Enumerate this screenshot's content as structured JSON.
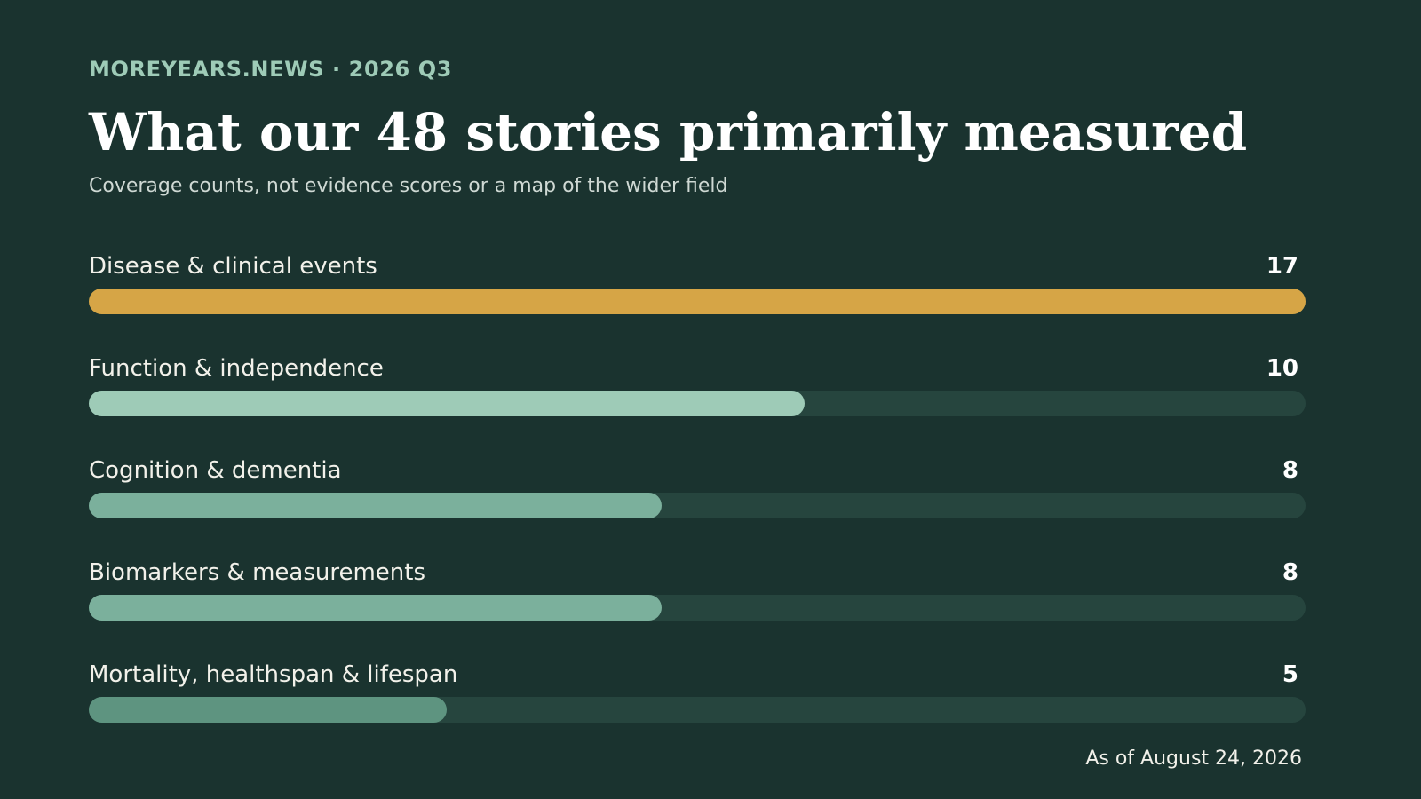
{
  "header": {
    "kicker": "MOREYEARS.NEWS · 2026 Q3",
    "title": "What our 48 stories primarily measured",
    "subtitle": "Coverage counts, not evidence scores or a map of the wider field"
  },
  "footer": {
    "as_of": "As of August 24, 2026"
  },
  "colors": {
    "background": "#1a332f",
    "track": "#26453e",
    "bar_highlight": "#d6a546",
    "bar_second": "#9ecbb7",
    "bar_mid": "#7bb09c",
    "bar_low": "#5e9480"
  },
  "chart_data": {
    "type": "bar",
    "orientation": "horizontal",
    "title": "What our 48 stories primarily measured",
    "subtitle": "Coverage counts, not evidence scores or a map of the wider field",
    "categories": [
      "Disease & clinical events",
      "Function & independence",
      "Cognition & dementia",
      "Biomarkers & measurements",
      "Mortality, healthspan & lifespan"
    ],
    "values": [
      17,
      10,
      8,
      8,
      5
    ],
    "xlim": [
      0,
      17
    ],
    "grid": false,
    "legend": "none"
  }
}
